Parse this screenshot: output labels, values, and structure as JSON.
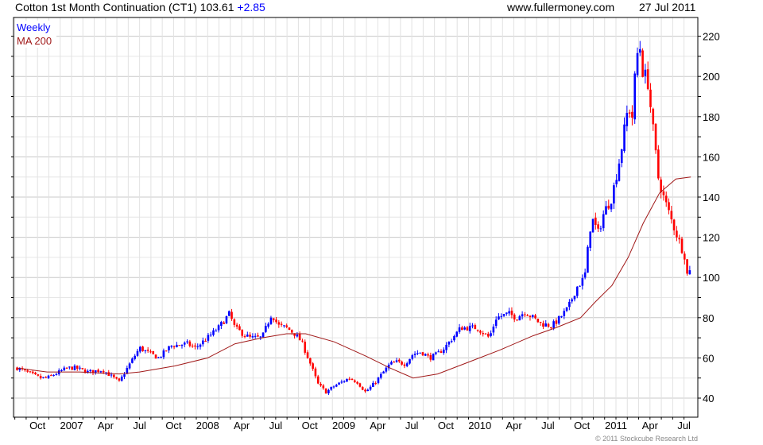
{
  "header": {
    "title": "Cotton 1st Month Continuation (CT1) 103.61",
    "change": "+2.85",
    "site": "www.fullermoney.com",
    "date": "27 Jul 2011"
  },
  "legend": {
    "weekly": "Weekly",
    "ma": "MA 200"
  },
  "footer": {
    "copyright": "© 2011 Stockcube Research Ltd"
  },
  "colors": {
    "up": "#0000ff",
    "down": "#ff0000",
    "ma": "#a01818",
    "change": "#0000ff"
  },
  "chart_data": {
    "type": "candlestick",
    "title": "Cotton 1st Month Continuation (CT1)",
    "interval": "weekly",
    "ylim": [
      30,
      225
    ],
    "yticks": [
      40,
      60,
      80,
      100,
      120,
      140,
      160,
      180,
      200,
      220
    ],
    "xlim": [
      2006.57,
      2011.62
    ],
    "xticks": [
      {
        "t": 2006.75,
        "label": "Oct"
      },
      {
        "t": 2007.0,
        "label": "2007"
      },
      {
        "t": 2007.25,
        "label": "Apr"
      },
      {
        "t": 2007.5,
        "label": "Jul"
      },
      {
        "t": 2007.75,
        "label": "Oct"
      },
      {
        "t": 2008.0,
        "label": "2008"
      },
      {
        "t": 2008.25,
        "label": "Apr"
      },
      {
        "t": 2008.5,
        "label": "Jul"
      },
      {
        "t": 2008.75,
        "label": "Oct"
      },
      {
        "t": 2009.0,
        "label": "2009"
      },
      {
        "t": 2009.25,
        "label": "Apr"
      },
      {
        "t": 2009.5,
        "label": "Jul"
      },
      {
        "t": 2009.75,
        "label": "Oct"
      },
      {
        "t": 2010.0,
        "label": "2010"
      },
      {
        "t": 2010.25,
        "label": "Apr"
      },
      {
        "t": 2010.5,
        "label": "Jul"
      },
      {
        "t": 2010.75,
        "label": "Oct"
      },
      {
        "t": 2011.0,
        "label": "2011"
      },
      {
        "t": 2011.25,
        "label": "Apr"
      },
      {
        "t": 2011.5,
        "label": "Jul"
      }
    ],
    "price_anchors": [
      [
        2006.6,
        55
      ],
      [
        2006.77,
        50
      ],
      [
        2006.82,
        50
      ],
      [
        2006.97,
        55
      ],
      [
        2007.03,
        55
      ],
      [
        2007.12,
        53
      ],
      [
        2007.23,
        54
      ],
      [
        2007.35,
        48
      ],
      [
        2007.41,
        55
      ],
      [
        2007.5,
        65
      ],
      [
        2007.58,
        62
      ],
      [
        2007.64,
        60
      ],
      [
        2007.73,
        66
      ],
      [
        2007.85,
        67
      ],
      [
        2007.91,
        65
      ],
      [
        2008.0,
        70
      ],
      [
        2008.08,
        75
      ],
      [
        2008.16,
        82
      ],
      [
        2008.2,
        75
      ],
      [
        2008.26,
        72
      ],
      [
        2008.31,
        70
      ],
      [
        2008.4,
        70
      ],
      [
        2008.47,
        82
      ],
      [
        2008.52,
        76
      ],
      [
        2008.58,
        75
      ],
      [
        2008.64,
        72
      ],
      [
        2008.69,
        68
      ],
      [
        2008.75,
        58
      ],
      [
        2008.81,
        47
      ],
      [
        2008.87,
        43
      ],
      [
        2008.93,
        46
      ],
      [
        2009.04,
        50
      ],
      [
        2009.1,
        48
      ],
      [
        2009.16,
        43
      ],
      [
        2009.22,
        47
      ],
      [
        2009.28,
        52
      ],
      [
        2009.34,
        57
      ],
      [
        2009.39,
        58
      ],
      [
        2009.45,
        57
      ],
      [
        2009.51,
        62
      ],
      [
        2009.57,
        63
      ],
      [
        2009.63,
        60
      ],
      [
        2009.69,
        62
      ],
      [
        2009.74,
        65
      ],
      [
        2009.8,
        70
      ],
      [
        2009.86,
        75
      ],
      [
        2009.98,
        75
      ],
      [
        2010.07,
        70
      ],
      [
        2010.12,
        80
      ],
      [
        2010.21,
        82
      ],
      [
        2010.27,
        80
      ],
      [
        2010.33,
        83
      ],
      [
        2010.39,
        80
      ],
      [
        2010.45,
        77
      ],
      [
        2010.53,
        76
      ],
      [
        2010.59,
        80
      ],
      [
        2010.65,
        85
      ],
      [
        2010.71,
        95
      ],
      [
        2010.77,
        100
      ],
      [
        2010.82,
        130
      ],
      [
        2010.87,
        122
      ],
      [
        2010.91,
        132
      ],
      [
        2010.97,
        140
      ],
      [
        2011.03,
        160
      ],
      [
        2011.09,
        185
      ],
      [
        2011.12,
        180
      ],
      [
        2011.15,
        210
      ],
      [
        2011.18,
        215
      ],
      [
        2011.2,
        200
      ],
      [
        2011.23,
        200
      ],
      [
        2011.27,
        175
      ],
      [
        2011.31,
        150
      ],
      [
        2011.35,
        140
      ],
      [
        2011.41,
        128
      ],
      [
        2011.47,
        117
      ],
      [
        2011.51,
        110
      ],
      [
        2011.53,
        97
      ],
      [
        2011.55,
        103.61
      ]
    ],
    "ma200": [
      [
        2006.6,
        55
      ],
      [
        2006.82,
        53
      ],
      [
        2007.06,
        53
      ],
      [
        2007.35,
        52
      ],
      [
        2007.5,
        53
      ],
      [
        2007.76,
        56
      ],
      [
        2008.0,
        60
      ],
      [
        2008.2,
        67
      ],
      [
        2008.4,
        70
      ],
      [
        2008.58,
        72
      ],
      [
        2008.72,
        72
      ],
      [
        2008.93,
        68
      ],
      [
        2009.16,
        61
      ],
      [
        2009.34,
        55
      ],
      [
        2009.51,
        50
      ],
      [
        2009.69,
        52
      ],
      [
        2009.92,
        58
      ],
      [
        2010.15,
        64
      ],
      [
        2010.39,
        71
      ],
      [
        2010.56,
        75
      ],
      [
        2010.74,
        80
      ],
      [
        2010.85,
        88
      ],
      [
        2010.97,
        96
      ],
      [
        2011.09,
        110
      ],
      [
        2011.2,
        127
      ],
      [
        2011.32,
        142
      ],
      [
        2011.44,
        149
      ],
      [
        2011.55,
        150
      ]
    ]
  }
}
